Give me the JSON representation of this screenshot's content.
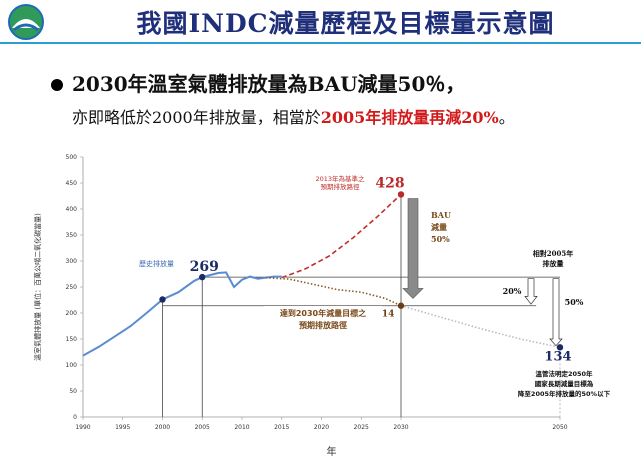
{
  "header": {
    "title": "我國INDC減量歷程及目標量示意圖",
    "logo_icon": "agency-logo-icon"
  },
  "bullet": {
    "line1": "2030年溫室氣體排放量為BAU減量50％，",
    "line2_plain": "亦即略低於2000年排放量，相當於",
    "line2_highlight": "2005年排放量再減20%",
    "line2_end": "。",
    "highlight_color": "#d21a1a"
  },
  "chart_data": {
    "type": "line",
    "ylabel": "溫室氣體排放量 (單位：百萬公噸二氧化碳當量)",
    "xlabel": "年",
    "xlim": [
      1990,
      2050
    ],
    "ylim": [
      0,
      500
    ],
    "x_ticks": [
      1990,
      1995,
      2000,
      2005,
      2010,
      2015,
      2020,
      2025,
      2030,
      2050
    ],
    "y_ticks": [
      0,
      50,
      100,
      150,
      200,
      250,
      300,
      350,
      400,
      450,
      500
    ],
    "grid": false,
    "series": [
      {
        "name": "歷史排放量",
        "style": "solid",
        "color": "#5b8bd0",
        "points": [
          [
            1990,
            118
          ],
          [
            1992,
            135
          ],
          [
            1994,
            155
          ],
          [
            1996,
            175
          ],
          [
            1998,
            200
          ],
          [
            2000,
            226
          ],
          [
            2002,
            240
          ],
          [
            2004,
            262
          ],
          [
            2005,
            269
          ],
          [
            2007,
            277
          ],
          [
            2008,
            278
          ],
          [
            2009,
            250
          ],
          [
            2010,
            264
          ],
          [
            2011,
            270
          ],
          [
            2012,
            266
          ],
          [
            2013,
            268
          ],
          [
            2014,
            270
          ],
          [
            2015,
            270
          ]
        ]
      },
      {
        "name": "2013年為基準之預期排放路徑",
        "style": "dashed",
        "color": "#c0302b",
        "points": [
          [
            2015,
            268
          ],
          [
            2018,
            285
          ],
          [
            2021,
            310
          ],
          [
            2024,
            345
          ],
          [
            2027,
            385
          ],
          [
            2030,
            428
          ]
        ]
      },
      {
        "name": "達到2030年減量目標之預期排放路徑",
        "style": "dotted",
        "color": "#8b5a2b",
        "points": [
          [
            2013,
            268
          ],
          [
            2016,
            265
          ],
          [
            2019,
            255
          ],
          [
            2022,
            245
          ],
          [
            2025,
            240
          ],
          [
            2028,
            228
          ],
          [
            2030,
            214
          ]
        ]
      },
      {
        "name": "",
        "style": "dotted",
        "color": "#bbbbbb",
        "points": [
          [
            2030,
            214
          ],
          [
            2035,
            192
          ],
          [
            2040,
            170
          ],
          [
            2045,
            150
          ],
          [
            2050,
            134
          ]
        ]
      }
    ],
    "markers": [
      {
        "year": 2000,
        "value": 226,
        "label": "",
        "color": "#1d2b63"
      },
      {
        "year": 2005,
        "value": 269,
        "label": "269",
        "color": "#1d2b63"
      },
      {
        "year": 2030,
        "value": 428,
        "label": "428",
        "color": "#b92a28"
      },
      {
        "year": 2030,
        "value": 214,
        "label": "214",
        "color": "#6b3d14"
      },
      {
        "year": 2050,
        "value": 134,
        "label": "134",
        "color": "#1d2b63"
      }
    ],
    "reference_lines": [
      {
        "value": 269,
        "from": 2005,
        "to": 2050
      },
      {
        "value": 214,
        "from": 2000,
        "to": 2047
      }
    ],
    "annotations": {
      "history": "歷史排放量",
      "bau_path": "2013年為基準之預期排放路徑",
      "target_path": "達到2030年減量目標之預期排放路徑",
      "bau_reduction": [
        "BAU",
        "減量",
        "50%"
      ],
      "equiv_2005": [
        "相對2005年",
        "排放量"
      ],
      "pct_20": "20%",
      "pct_50": "50%",
      "law_note": [
        "溫管法明定2050年",
        "國家長期減量目標為",
        "降至2005年排放量的50%以下"
      ]
    }
  }
}
